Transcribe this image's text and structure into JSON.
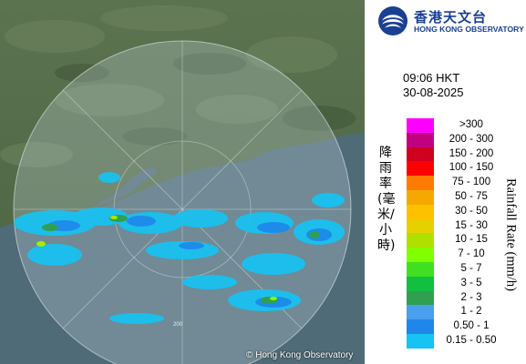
{
  "map": {
    "copyright": "© Hong Kong Observatory",
    "range_label": "200"
  },
  "header": {
    "logo_cn": "香港天文台",
    "logo_en": "HONG KONG OBSERVATORY"
  },
  "observation": {
    "time": "09:06 HKT",
    "date": "30-08-2025"
  },
  "legend": {
    "title_cn": "降雨率(毫米/小時)",
    "title_en": "Rainfall Rate (mm/h)",
    "items": [
      {
        "label": ">300",
        "color": "#ff00ff"
      },
      {
        "label": "200 - 300",
        "color": "#c1007f"
      },
      {
        "label": "150 - 200",
        "color": "#d00020"
      },
      {
        "label": "100 - 150",
        "color": "#ff0000"
      },
      {
        "label": "75 - 100",
        "color": "#ff7a00"
      },
      {
        "label": "50 - 75",
        "color": "#f4a800"
      },
      {
        "label": "30 - 50",
        "color": "#ffc000"
      },
      {
        "label": "15 - 30",
        "color": "#e6d000"
      },
      {
        "label": "10 - 15",
        "color": "#b0e000"
      },
      {
        "label": "7 - 10",
        "color": "#80ff00"
      },
      {
        "label": "5 - 7",
        "color": "#40e020"
      },
      {
        "label": "3 - 5",
        "color": "#10c040"
      },
      {
        "label": "2 - 3",
        "color": "#30a050"
      },
      {
        "label": "1 - 2",
        "color": "#4aa0ee"
      },
      {
        "label": "0.50 - 1",
        "color": "#1f86ea"
      },
      {
        "label": "0.15 - 0.50",
        "color": "#16c3f2"
      }
    ]
  }
}
